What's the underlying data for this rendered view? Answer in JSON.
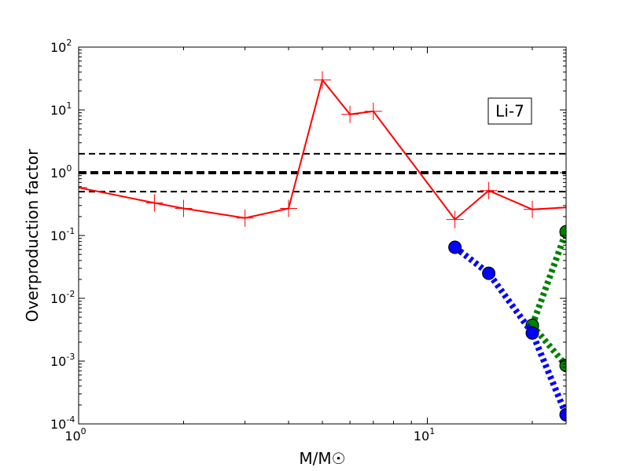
{
  "chart_data": {
    "type": "line",
    "title": "",
    "xlabel": "M/M☉",
    "ylabel": "Overproduction factor",
    "xscale": "log",
    "yscale": "log",
    "xlim": [
      1,
      25
    ],
    "ylim": [
      0.0001,
      100
    ],
    "x_ticks": [
      {
        "value": 1,
        "base": "10",
        "exp": "0"
      },
      {
        "value": 10,
        "base": "10",
        "exp": "1"
      }
    ],
    "y_ticks": [
      {
        "value": 0.0001,
        "base": "10",
        "exp": "-4"
      },
      {
        "value": 0.001,
        "base": "10",
        "exp": "-3"
      },
      {
        "value": 0.01,
        "base": "10",
        "exp": "-2"
      },
      {
        "value": 0.1,
        "base": "10",
        "exp": "-1"
      },
      {
        "value": 1,
        "base": "10",
        "exp": "0"
      },
      {
        "value": 10,
        "base": "10",
        "exp": "1"
      },
      {
        "value": 100,
        "base": "10",
        "exp": "2"
      }
    ],
    "annotation": "Li-7",
    "reference_lines": [
      {
        "y": 2.0,
        "style": "dashed",
        "weight": "thin",
        "color": "#000000"
      },
      {
        "y": 1.0,
        "style": "dashed",
        "weight": "thick",
        "color": "#000000"
      },
      {
        "y": 0.5,
        "style": "dashed",
        "weight": "thin",
        "color": "#000000"
      }
    ],
    "series": [
      {
        "color": "#ff0000",
        "style": "solid",
        "marker": "plus",
        "x": [
          1,
          1.65,
          2,
          3,
          4,
          5,
          6,
          7,
          12,
          15,
          20,
          25
        ],
        "y": [
          0.58,
          0.33,
          0.27,
          0.19,
          0.27,
          30,
          8.5,
          9.5,
          0.18,
          0.52,
          0.26,
          0.28
        ]
      },
      {
        "color": "#008000",
        "style": "dotted",
        "marker": "circle",
        "x": [
          20,
          25
        ],
        "y": [
          0.0037,
          0.00085
        ],
        "x2": [
          20,
          25
        ],
        "y2": [
          0.0037,
          0.115
        ]
      },
      {
        "color": "#0000ff",
        "style": "dotted",
        "marker": "circle",
        "x": [
          12,
          15,
          20,
          25
        ],
        "y": [
          0.065,
          0.025,
          0.0028,
          0.00014
        ]
      }
    ]
  }
}
